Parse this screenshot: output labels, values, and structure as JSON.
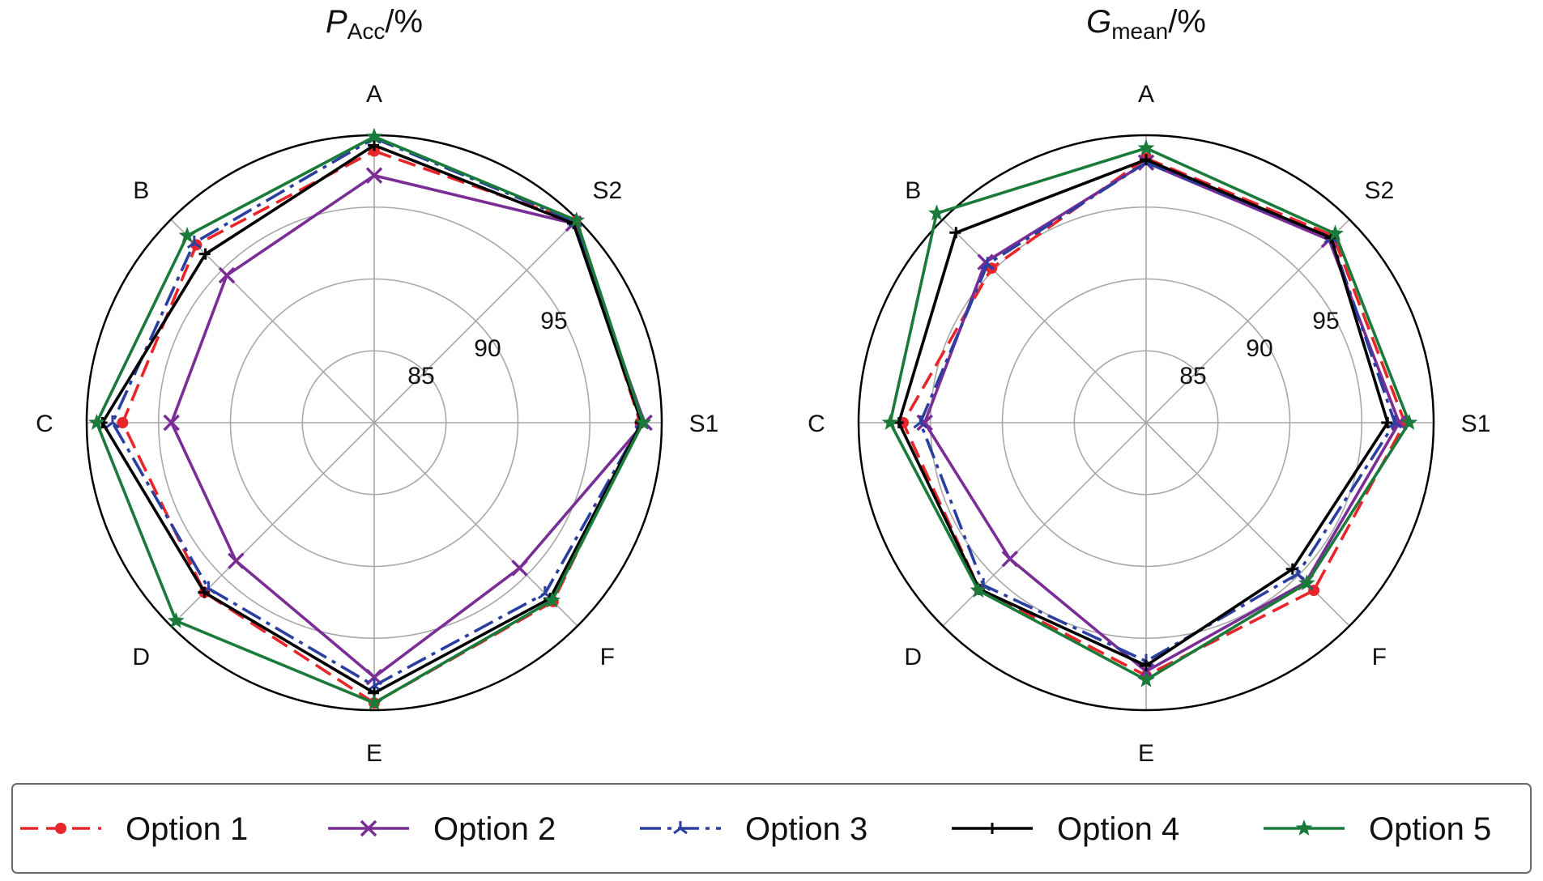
{
  "chart_data": {
    "type": "radar",
    "axes": [
      "A",
      "S2",
      "S1",
      "F",
      "E",
      "D",
      "C",
      "B"
    ],
    "rlim": [
      80,
      100
    ],
    "ring_ticks": [
      85,
      90,
      95
    ],
    "grid": true,
    "legend_position": "bottom",
    "legend": {
      "entries": [
        "Option 1",
        "Option 2",
        "Option 3",
        "Option 4",
        "Option 5"
      ]
    },
    "colors": {
      "Option 1": "#e8262a",
      "Option 2": "#7b2d96",
      "Option 3": "#2a3fa0",
      "Option 4": "#000000",
      "Option 5": "#1a7a3a"
    },
    "charts": [
      {
        "title": "P",
        "title_sub": "Acc",
        "title_suffix": "/%",
        "series": [
          {
            "name": "Option 1",
            "values": [
              98.9,
              99.8,
              98.5,
              97.6,
              99.5,
              96.7,
              97.5,
              97.5
            ]
          },
          {
            "name": "Option 2",
            "values": [
              97.2,
              99.6,
              98.8,
              94.3,
              97.7,
              93.6,
              94.1,
              94.5
            ]
          },
          {
            "name": "Option 3",
            "values": [
              99.8,
              99.8,
              98.6,
              96.8,
              98.3,
              96.3,
              98.2,
              97.7
            ]
          },
          {
            "name": "Option 4",
            "values": [
              99.3,
              99.6,
              98.6,
              97.3,
              98.8,
              96.7,
              98.9,
              96.6
            ]
          },
          {
            "name": "Option 5",
            "values": [
              99.9,
              99.9,
              98.7,
              97.5,
              99.5,
              99.5,
              99.3,
              98.4
            ]
          }
        ]
      },
      {
        "title": "G",
        "title_sub": "mean",
        "title_suffix": "/%",
        "series": [
          {
            "name": "Option 1",
            "values": [
              98.4,
              98.4,
              98.0,
              96.5,
              97.6,
              96.4,
              96.9,
              95.2
            ]
          },
          {
            "name": "Option 2",
            "values": [
              98.1,
              98.0,
              97.6,
              95.7,
              97.3,
              93.4,
              95.4,
              95.8
            ]
          },
          {
            "name": "Option 3",
            "values": [
              98.1,
              98.2,
              97.3,
              94.9,
              96.6,
              96.0,
              95.7,
              95.6
            ]
          },
          {
            "name": "Option 4",
            "values": [
              98.3,
              98.2,
              96.8,
              94.4,
              96.9,
              96.4,
              97.2,
              98.7
            ]
          },
          {
            "name": "Option 5",
            "values": [
              99.1,
              98.6,
              98.3,
              95.8,
              97.9,
              96.5,
              97.8,
              100.6
            ]
          }
        ]
      }
    ]
  }
}
